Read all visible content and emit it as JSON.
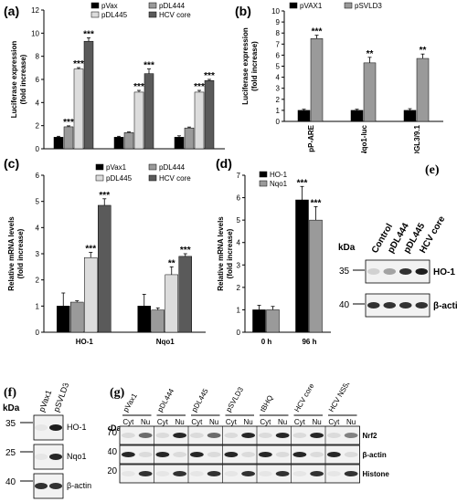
{
  "chart_data": [
    {
      "panel": "(a)",
      "type": "bar",
      "categories": [
        "pP-ARE",
        "pNqo1-luc",
        "pHOGL3/9.1"
      ],
      "series": [
        {
          "name": "pVax",
          "values": [
            1.0,
            1.0,
            1.0
          ],
          "errors": [
            0.08,
            0.08,
            0.12
          ],
          "sig": [
            "",
            "",
            ""
          ]
        },
        {
          "name": "pDL444",
          "values": [
            1.9,
            1.4,
            1.8
          ],
          "errors": [
            0.08,
            0.06,
            0.08
          ],
          "sig": [
            "***",
            "",
            ""
          ]
        },
        {
          "name": "pDL445",
          "values": [
            6.9,
            4.9,
            4.9
          ],
          "errors": [
            0.12,
            0.15,
            0.15
          ],
          "sig": [
            "***",
            "***",
            "***"
          ]
        },
        {
          "name": "HCV core",
          "values": [
            9.3,
            6.5,
            5.9
          ],
          "errors": [
            0.3,
            0.4,
            0.1
          ],
          "sig": [
            "***",
            "***",
            "***"
          ]
        }
      ],
      "ylabel": "Luciferase expression (fold increase)",
      "ylim": [
        0,
        12
      ],
      "yticks": [
        0,
        2,
        4,
        6,
        8,
        10,
        12
      ],
      "legend": "top"
    },
    {
      "panel": "(b)",
      "type": "bar",
      "categories": [
        "pP-ARE",
        "pNqo1-luc",
        "pHOGL3/9.1"
      ],
      "series": [
        {
          "name": "pVAX1",
          "values": [
            1.0,
            1.0,
            1.0
          ],
          "errors": [
            0.1,
            0.1,
            0.15
          ],
          "sig": [
            "",
            "",
            ""
          ]
        },
        {
          "name": "pSVLD3",
          "values": [
            7.5,
            5.3,
            5.7
          ],
          "errors": [
            0.3,
            0.5,
            0.4
          ],
          "sig": [
            "***",
            "**",
            "**"
          ]
        }
      ],
      "ylabel": "Luciferase expression (fold increase)",
      "ylim": [
        0,
        10
      ],
      "yticks": [
        0,
        1,
        2,
        3,
        4,
        5,
        6,
        7,
        8,
        9,
        10
      ],
      "legend": "top"
    },
    {
      "panel": "(c)",
      "type": "bar",
      "categories": [
        "HO-1",
        "Nqo1"
      ],
      "series": [
        {
          "name": "pVax1",
          "values": [
            1.0,
            1.0
          ],
          "errors": [
            0.5,
            0.45
          ],
          "sig": [
            "",
            ""
          ]
        },
        {
          "name": "pDL444",
          "values": [
            1.15,
            0.85
          ],
          "errors": [
            0.05,
            0.08
          ],
          "sig": [
            "",
            ""
          ]
        },
        {
          "name": "pDL445",
          "values": [
            2.85,
            2.2
          ],
          "errors": [
            0.2,
            0.3
          ],
          "sig": [
            "***",
            "**"
          ]
        },
        {
          "name": "HCV core",
          "values": [
            4.85,
            2.9
          ],
          "errors": [
            0.25,
            0.1
          ],
          "sig": [
            "***",
            "***"
          ]
        }
      ],
      "ylabel": "Relative mRNA levels (fold increase)",
      "ylim": [
        0,
        6
      ],
      "yticks": [
        0,
        1,
        2,
        3,
        4,
        5,
        6
      ],
      "legend": "top"
    },
    {
      "panel": "(d)",
      "type": "bar",
      "categories": [
        "0 h",
        "96 h"
      ],
      "series": [
        {
          "name": "HO-1",
          "values": [
            1.0,
            5.9
          ],
          "errors": [
            0.2,
            0.6
          ],
          "sig": [
            "",
            "***"
          ]
        },
        {
          "name": "Nqo1",
          "values": [
            1.0,
            5.0
          ],
          "errors": [
            0.15,
            0.6
          ],
          "sig": [
            "",
            "***"
          ]
        }
      ],
      "ylabel": "Relative mRNA levels (fold increase)",
      "ylim": [
        0,
        7
      ],
      "yticks": [
        0,
        1,
        2,
        3,
        4,
        5,
        6,
        7
      ],
      "legend": "top-left"
    }
  ],
  "blots": {
    "e": {
      "label": "(e)",
      "kda_label": "kDa",
      "lanes": [
        "Control",
        "pDL444",
        "pDL445",
        "HCV core"
      ],
      "rows": [
        {
          "marker": "35",
          "name": "HO-1",
          "intensity": [
            0.15,
            0.35,
            0.85,
            0.95
          ]
        },
        {
          "marker": "40",
          "name": "β-actin",
          "intensity": [
            0.85,
            0.85,
            0.85,
            0.85
          ]
        }
      ]
    },
    "f": {
      "label": "(f)",
      "kda_label": "kDa",
      "lanes": [
        "pVax1",
        "pSVLD3"
      ],
      "rows": [
        {
          "marker": "35",
          "name": "HO-1",
          "intensity": [
            0.05,
            0.95
          ]
        },
        {
          "marker": "25",
          "name": "Nqo1",
          "intensity": [
            0.05,
            0.9
          ]
        },
        {
          "marker": "40",
          "name": "β-actin",
          "intensity": [
            0.85,
            0.85
          ]
        }
      ]
    },
    "g": {
      "label": "(g)",
      "kda_label": "kDa",
      "groups": [
        "pVax1",
        "pDL444",
        "pDL445",
        "pSVLD3",
        "tBHQ",
        "HCV core",
        "HCV NS5B"
      ],
      "fractions": [
        "Cyt",
        "Nu"
      ],
      "rows": [
        {
          "marker": "70",
          "name": "Nrf2",
          "intensity": [
            0.1,
            0.6,
            0.1,
            0.9,
            0.1,
            0.6,
            0.1,
            0.9,
            0.1,
            0.9,
            0.1,
            0.9,
            0.1,
            0.5
          ]
        },
        {
          "marker": "40",
          "name": "β-actin",
          "intensity": [
            0.9,
            0.1,
            0.9,
            0.1,
            0.9,
            0.1,
            0.9,
            0.1,
            0.9,
            0.1,
            0.9,
            0.1,
            0.9,
            0.1
          ]
        },
        {
          "marker": "20",
          "name": "Histone",
          "intensity": [
            0.05,
            0.85,
            0.05,
            0.85,
            0.05,
            0.85,
            0.05,
            0.85,
            0.05,
            0.85,
            0.05,
            0.85,
            0.05,
            0.85
          ]
        }
      ]
    }
  },
  "colors": {
    "series": [
      "#000000",
      "#9a9a9a",
      "#dcdcdc",
      "#5a5a5a"
    ],
    "series2": [
      "#000000",
      "#9a9a9a"
    ]
  }
}
